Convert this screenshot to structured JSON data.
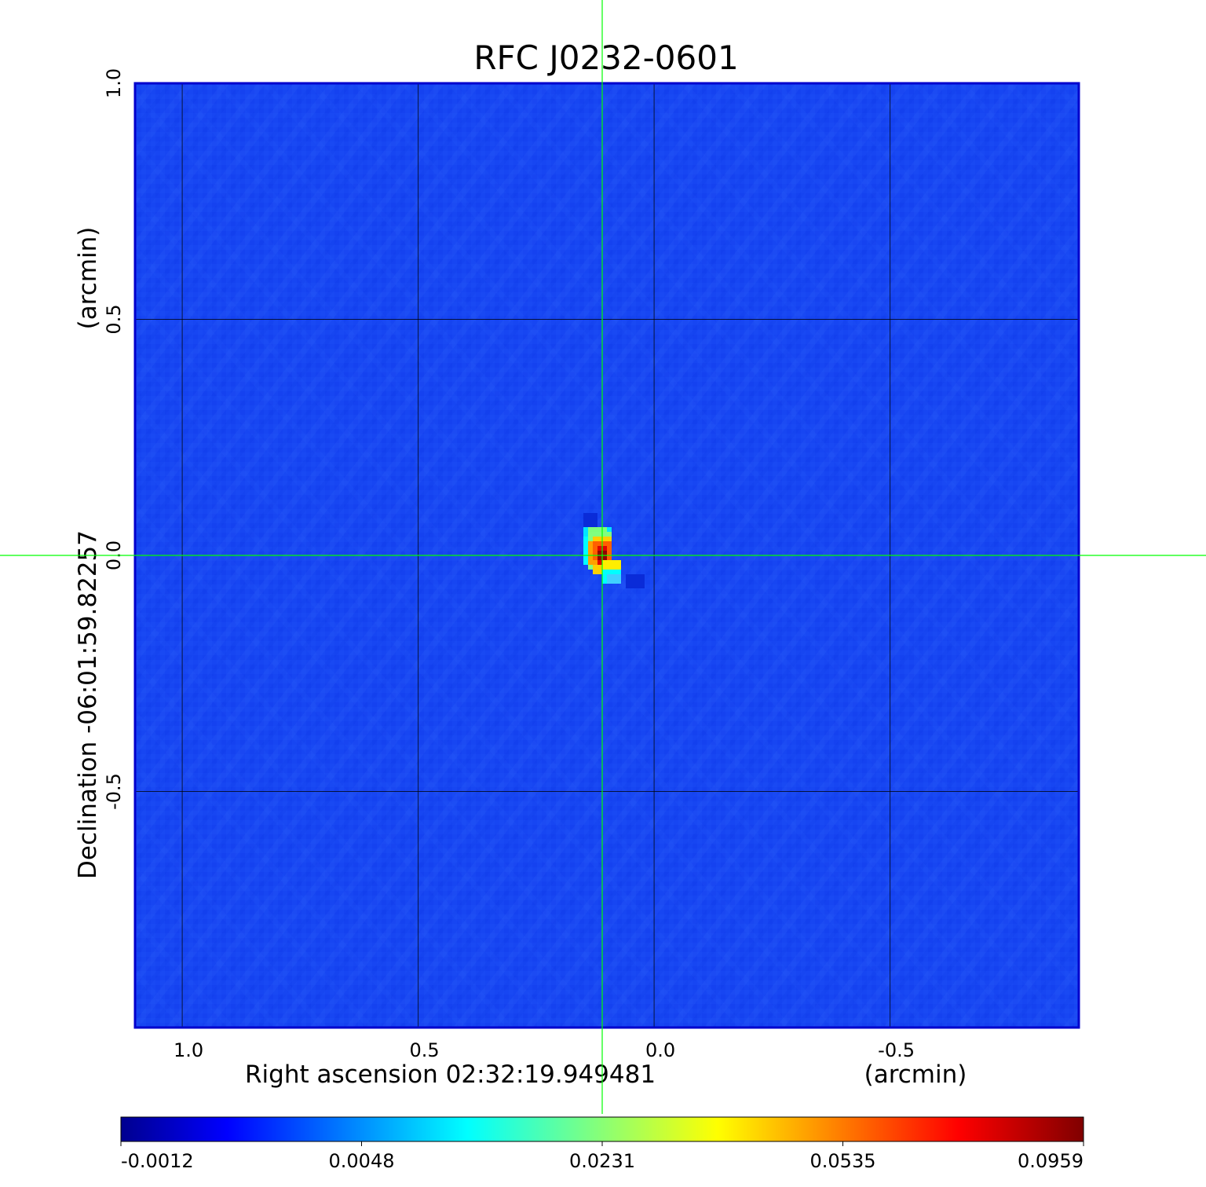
{
  "chart_data": {
    "type": "heatmap",
    "title": "RFC J0232-0601",
    "xlabel": {
      "main": "Right ascension  02:32:19.949481",
      "unit": "(arcmin)"
    },
    "ylabel": {
      "main": "Declination  -06:01:59.82257",
      "unit": "(arcmin)"
    },
    "x_ticks": [
      "1.0",
      "0.5",
      "0.0",
      "-0.5"
    ],
    "y_ticks": [
      "1.0",
      "0.5",
      "0.0",
      "-0.5"
    ],
    "x_tick_values": [
      1.0,
      0.5,
      0.0,
      -0.5
    ],
    "y_tick_values": [
      1.0,
      0.5,
      0.0,
      -0.5
    ],
    "xlim": [
      1.1,
      -0.9
    ],
    "ylim": [
      -1.0,
      1.0
    ],
    "grid": true,
    "crosshair": {
      "x": 0.11,
      "y": 0.0
    },
    "source": {
      "peak_x": 0.11,
      "peak_y": 0.0,
      "peak_value": 0.0959
    },
    "colorbar": {
      "ticks": [
        "-0.0012",
        "0.0048",
        "0.0231",
        "0.0535",
        "0.0959"
      ],
      "min": -0.0012,
      "max": 0.0959
    },
    "colormap": [
      "#00008f",
      "#0000ff",
      "#00ffff",
      "#ffff00",
      "#ff0000",
      "#800000"
    ],
    "crosshair_color": "#00ff00",
    "title_color": "#0000cd"
  }
}
